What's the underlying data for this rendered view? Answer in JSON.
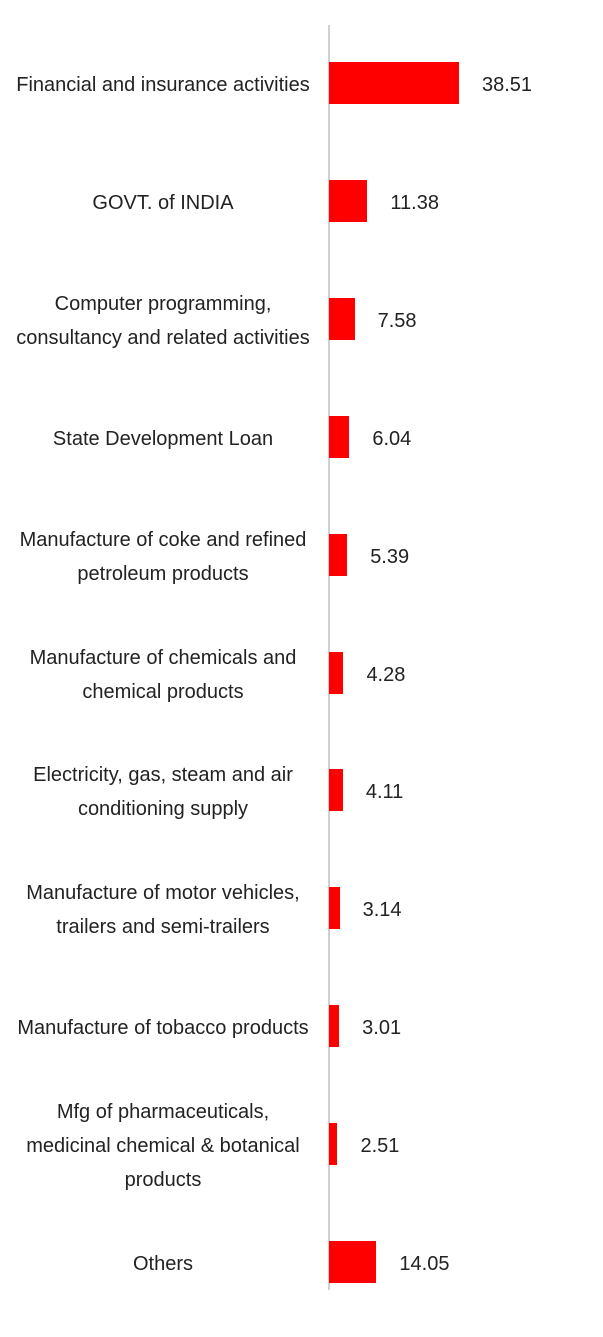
{
  "chart_data": {
    "type": "bar",
    "orientation": "horizontal",
    "categories": [
      "Financial and insurance activities",
      "GOVT. of INDIA",
      "Computer programming, consultancy and related activities",
      "State Development Loan",
      "Manufacture of coke and refined petroleum products",
      "Manufacture of chemicals and chemical products",
      "Electricity, gas, steam and air conditioning supply",
      "Manufacture of motor vehicles, trailers and semi-trailers",
      "Manufacture of tobacco products",
      "Mfg of pharmaceuticals, medicinal chemical & botanical products",
      "Others"
    ],
    "values": [
      38.51,
      11.38,
      7.58,
      6.04,
      5.39,
      4.28,
      4.11,
      3.14,
      3.01,
      2.51,
      14.05
    ],
    "color": "#ff0000",
    "xlim": [
      0,
      80
    ]
  }
}
